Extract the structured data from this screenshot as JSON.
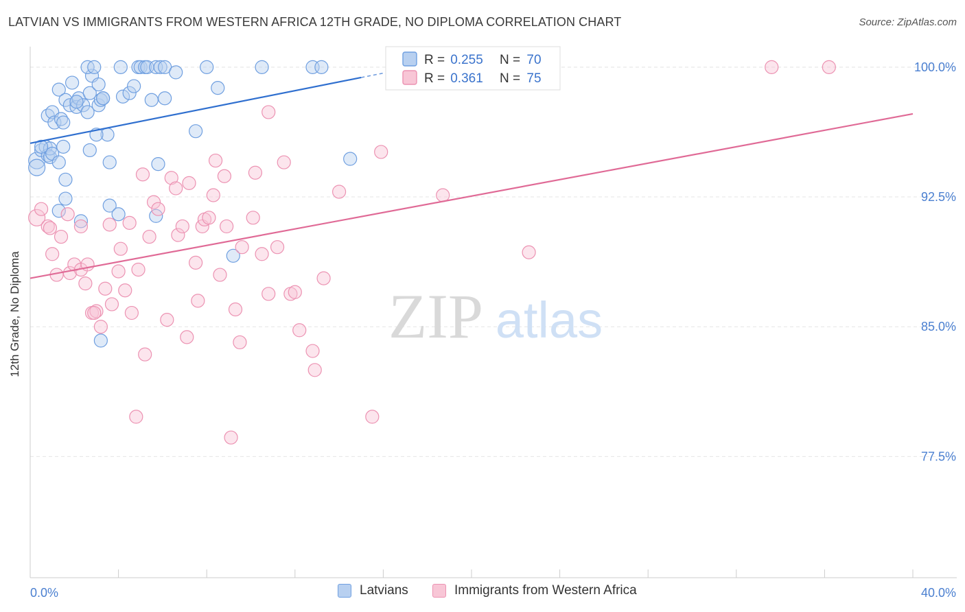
{
  "chart_data": {
    "type": "scatter",
    "title": "LATVIAN VS IMMIGRANTS FROM WESTERN AFRICA 12TH GRADE, NO DIPLOMA CORRELATION CHART",
    "source": "Source: ZipAtlas.com",
    "ylabel": "12th Grade, No Diploma",
    "xlabel": "",
    "xlim": [
      0,
      40
    ],
    "ylim": [
      70.5,
      101.5
    ],
    "x_tick_labels": [
      "0.0%",
      "40.0%"
    ],
    "y_ticks": [
      77.5,
      85.0,
      92.5,
      100.0
    ],
    "y_tick_labels": [
      "77.5%",
      "85.0%",
      "92.5%",
      "100.0%"
    ],
    "grid": true,
    "watermark": "ZIPatlas",
    "legend": {
      "placement": "top-center",
      "entries": [
        {
          "r_label": "R =",
          "r_value": "0.255",
          "n_label": "N =",
          "n_value": "70"
        },
        {
          "r_label": "R =",
          "r_value": "0.361",
          "n_label": "N =",
          "n_value": "75"
        }
      ]
    },
    "series": [
      {
        "name": "Latvians",
        "color": "#6f9fe0",
        "fill": "#b8d0f0",
        "trend_color": "#2f6fcf",
        "trend": {
          "x": [
            0,
            15
          ],
          "y": [
            95.6,
            99.4
          ]
        },
        "trend_dashed": {
          "x": [
            15,
            16.5
          ],
          "y": [
            99.4,
            99.78
          ]
        },
        "points": [
          [
            0.3,
            94.6
          ],
          [
            0.3,
            94.2
          ],
          [
            0.5,
            95.2
          ],
          [
            0.7,
            95.4
          ],
          [
            0.8,
            94.9
          ],
          [
            0.9,
            94.8
          ],
          [
            0.9,
            95.3
          ],
          [
            1.0,
            95.0
          ],
          [
            0.8,
            97.2
          ],
          [
            1.0,
            97.4
          ],
          [
            1.1,
            96.8
          ],
          [
            1.4,
            97.0
          ],
          [
            1.5,
            96.8
          ],
          [
            1.3,
            94.5
          ],
          [
            1.6,
            93.5
          ],
          [
            1.6,
            92.4
          ],
          [
            1.3,
            91.7
          ],
          [
            1.3,
            98.7
          ],
          [
            1.6,
            98.1
          ],
          [
            1.9,
            99.1
          ],
          [
            1.8,
            97.8
          ],
          [
            2.1,
            98.0
          ],
          [
            2.1,
            97.7
          ],
          [
            2.2,
            98.2
          ],
          [
            2.4,
            97.8
          ],
          [
            2.6,
            97.4
          ],
          [
            2.7,
            98.5
          ],
          [
            2.8,
            99.5
          ],
          [
            2.6,
            100.0
          ],
          [
            3.1,
            99.0
          ],
          [
            3.1,
            97.8
          ],
          [
            3.2,
            98.1
          ],
          [
            3.3,
            98.2
          ],
          [
            3.5,
            96.1
          ],
          [
            3.0,
            96.1
          ],
          [
            2.7,
            95.2
          ],
          [
            2.9,
            100.0
          ],
          [
            4.1,
            100.0
          ],
          [
            4.2,
            98.3
          ],
          [
            4.5,
            98.5
          ],
          [
            4.7,
            98.9
          ],
          [
            4.9,
            100.0
          ],
          [
            5.0,
            100.0
          ],
          [
            5.2,
            100.0
          ],
          [
            5.3,
            100.0
          ],
          [
            5.5,
            98.1
          ],
          [
            5.7,
            100.0
          ],
          [
            5.9,
            100.0
          ],
          [
            6.1,
            100.0
          ],
          [
            6.1,
            98.2
          ],
          [
            6.6,
            99.7
          ],
          [
            7.5,
            96.3
          ],
          [
            8.0,
            100.0
          ],
          [
            8.5,
            98.8
          ],
          [
            10.5,
            100.0
          ],
          [
            12.8,
            100.0
          ],
          [
            13.2,
            100.0
          ],
          [
            14.5,
            94.7
          ],
          [
            3.6,
            94.5
          ],
          [
            5.8,
            94.4
          ],
          [
            3.6,
            92.0
          ],
          [
            4.0,
            91.5
          ],
          [
            5.7,
            91.4
          ],
          [
            2.3,
            91.1
          ],
          [
            3.2,
            84.2
          ],
          [
            9.2,
            89.1
          ],
          [
            1.5,
            95.4
          ],
          [
            0.5,
            95.4
          ],
          [
            2.1,
            98.0
          ],
          [
            3.3,
            98.2
          ]
        ]
      },
      {
        "name": "Immigrants from Western Africa",
        "color": "#ec92b2",
        "fill": "#f8c6d6",
        "trend_color": "#e06a96",
        "trend": {
          "x": [
            0,
            40
          ],
          "y": [
            87.8,
            97.3
          ]
        },
        "points": [
          [
            0.3,
            91.3
          ],
          [
            0.5,
            91.8
          ],
          [
            0.8,
            90.8
          ],
          [
            0.9,
            90.7
          ],
          [
            1.0,
            89.2
          ],
          [
            1.2,
            88.0
          ],
          [
            1.4,
            90.2
          ],
          [
            1.7,
            91.5
          ],
          [
            1.8,
            88.1
          ],
          [
            2.0,
            88.6
          ],
          [
            2.3,
            90.8
          ],
          [
            2.3,
            88.3
          ],
          [
            2.5,
            87.5
          ],
          [
            2.6,
            88.6
          ],
          [
            2.8,
            85.8
          ],
          [
            3.0,
            85.9
          ],
          [
            3.2,
            85.0
          ],
          [
            3.4,
            87.2
          ],
          [
            3.6,
            90.9
          ],
          [
            3.7,
            86.3
          ],
          [
            4.0,
            88.2
          ],
          [
            4.1,
            89.5
          ],
          [
            4.3,
            87.1
          ],
          [
            4.5,
            91.0
          ],
          [
            4.6,
            85.8
          ],
          [
            4.9,
            88.3
          ],
          [
            5.1,
            93.8
          ],
          [
            5.4,
            90.2
          ],
          [
            5.6,
            92.2
          ],
          [
            5.8,
            91.8
          ],
          [
            6.2,
            85.4
          ],
          [
            6.4,
            93.6
          ],
          [
            6.6,
            93.0
          ],
          [
            6.7,
            90.3
          ],
          [
            6.9,
            90.8
          ],
          [
            7.1,
            84.4
          ],
          [
            7.2,
            93.3
          ],
          [
            7.5,
            88.7
          ],
          [
            7.6,
            86.5
          ],
          [
            7.8,
            90.8
          ],
          [
            7.9,
            91.2
          ],
          [
            8.1,
            91.3
          ],
          [
            8.3,
            92.6
          ],
          [
            8.4,
            94.6
          ],
          [
            8.6,
            88.0
          ],
          [
            8.8,
            93.7
          ],
          [
            8.9,
            90.8
          ],
          [
            9.3,
            86.0
          ],
          [
            9.5,
            84.1
          ],
          [
            9.6,
            89.6
          ],
          [
            10.1,
            91.3
          ],
          [
            10.2,
            93.9
          ],
          [
            10.5,
            89.2
          ],
          [
            10.8,
            86.9
          ],
          [
            10.8,
            97.4
          ],
          [
            11.2,
            89.6
          ],
          [
            11.5,
            94.5
          ],
          [
            11.8,
            86.9
          ],
          [
            12.0,
            87.0
          ],
          [
            12.2,
            84.8
          ],
          [
            12.8,
            83.6
          ],
          [
            12.9,
            82.5
          ],
          [
            13.3,
            87.8
          ],
          [
            14.0,
            92.8
          ],
          [
            15.5,
            79.8
          ],
          [
            15.9,
            95.1
          ],
          [
            17.5,
            100.0
          ],
          [
            18.7,
            92.6
          ],
          [
            22.6,
            89.3
          ],
          [
            33.6,
            100.0
          ],
          [
            36.2,
            100.0
          ],
          [
            4.8,
            79.8
          ],
          [
            9.1,
            78.6
          ],
          [
            5.2,
            83.4
          ],
          [
            2.9,
            85.8
          ]
        ]
      }
    ]
  }
}
